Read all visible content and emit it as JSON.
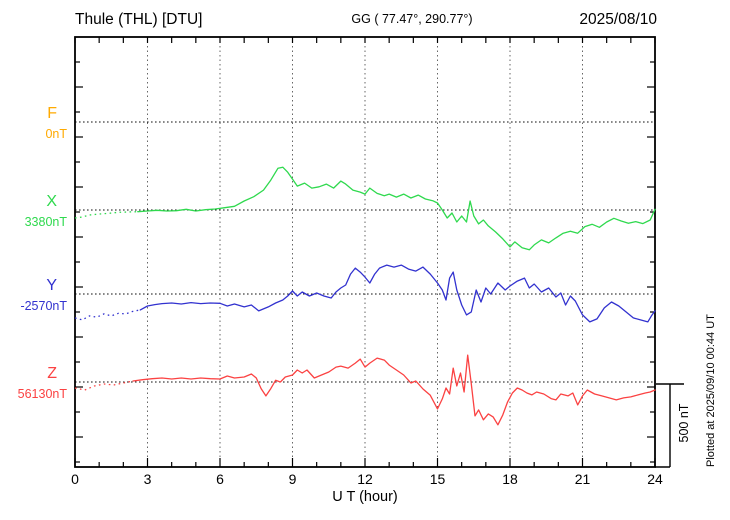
{
  "header": {
    "station_title": "Thule (THL)  [DTU]",
    "geographic_coords": "GG ( 77.47°, 290.77°)",
    "date": "2025/08/10"
  },
  "x_axis": {
    "label": "U T (hour)",
    "major_ticks": [
      0,
      3,
      6,
      9,
      12,
      15,
      18,
      21,
      24
    ],
    "minor_step_hours": 1,
    "range_hours": [
      0,
      24
    ]
  },
  "scale_bar": {
    "label": "500 nT",
    "value_nT": 500
  },
  "plotted_note": "Plotted at 2025/09/10 00:44 UT",
  "colors": {
    "F": "#FFAA00",
    "X": "#2FD94E",
    "Y": "#3232CF",
    "Z": "#FB4242",
    "axis": "#000000",
    "vgrid": "#666666",
    "baseline_dots": "#111111"
  },
  "chart_data": {
    "type": "line",
    "title": "Thule (THL) [DTU] magnetogram 2025/08/10",
    "xlabel": "U T (hour)",
    "x_range_hours": [
      0,
      24
    ],
    "grid": "dotted vertical lines every 3 h; dotted horizontal baseline per component",
    "legend_position": "left margin, one colored letter per component",
    "amplitude_scale": {
      "nT": 500,
      "pixels": 83
    },
    "series": [
      {
        "name": "F",
        "color_key": "F",
        "baseline_label": "0nT",
        "baseline_nT": 0,
        "note": "no trace plotted (no data)",
        "dotted_until_hour": 0,
        "points": []
      },
      {
        "name": "X",
        "color_key": "X",
        "baseline_label": "3380nT",
        "baseline_nT": 3380,
        "dotted_until_hour": 2.6,
        "points": [
          [
            0,
            -48
          ],
          [
            0.3,
            -42
          ],
          [
            0.6,
            -30
          ],
          [
            1,
            -24
          ],
          [
            1.4,
            -20
          ],
          [
            1.8,
            -14
          ],
          [
            2.2,
            -12
          ],
          [
            2.6,
            -10
          ],
          [
            3,
            -6
          ],
          [
            3.4,
            -2
          ],
          [
            3.8,
            -6
          ],
          [
            4.2,
            -4
          ],
          [
            4.6,
            4
          ],
          [
            5,
            -6
          ],
          [
            5.4,
            2
          ],
          [
            5.8,
            6
          ],
          [
            6.2,
            14
          ],
          [
            6.6,
            22
          ],
          [
            7,
            54
          ],
          [
            7.4,
            80
          ],
          [
            7.8,
            120
          ],
          [
            8.1,
            180
          ],
          [
            8.4,
            252
          ],
          [
            8.6,
            258
          ],
          [
            8.8,
            228
          ],
          [
            9,
            186
          ],
          [
            9.2,
            144
          ],
          [
            9.5,
            162
          ],
          [
            9.8,
            132
          ],
          [
            10.1,
            140
          ],
          [
            10.4,
            156
          ],
          [
            10.7,
            132
          ],
          [
            11,
            174
          ],
          [
            11.2,
            156
          ],
          [
            11.5,
            120
          ],
          [
            11.8,
            108
          ],
          [
            12,
            96
          ],
          [
            12.2,
            132
          ],
          [
            12.5,
            100
          ],
          [
            12.8,
            86
          ],
          [
            13,
            96
          ],
          [
            13.3,
            78
          ],
          [
            13.6,
            96
          ],
          [
            13.9,
            72
          ],
          [
            14.2,
            90
          ],
          [
            14.5,
            66
          ],
          [
            14.8,
            56
          ],
          [
            15,
            42
          ],
          [
            15.2,
            0
          ],
          [
            15.4,
            -48
          ],
          [
            15.6,
            -18
          ],
          [
            15.8,
            -72
          ],
          [
            16,
            -36
          ],
          [
            16.2,
            -72
          ],
          [
            16.35,
            54
          ],
          [
            16.5,
            -36
          ],
          [
            16.7,
            -84
          ],
          [
            16.9,
            -60
          ],
          [
            17.1,
            -96
          ],
          [
            17.4,
            -132
          ],
          [
            17.7,
            -174
          ],
          [
            18,
            -222
          ],
          [
            18.2,
            -192
          ],
          [
            18.5,
            -228
          ],
          [
            18.8,
            -240
          ],
          [
            19,
            -210
          ],
          [
            19.3,
            -180
          ],
          [
            19.6,
            -198
          ],
          [
            19.9,
            -168
          ],
          [
            20.2,
            -140
          ],
          [
            20.5,
            -128
          ],
          [
            20.8,
            -140
          ],
          [
            21.1,
            -100
          ],
          [
            21.4,
            -86
          ],
          [
            21.7,
            -104
          ],
          [
            22,
            -72
          ],
          [
            22.3,
            -50
          ],
          [
            22.6,
            -66
          ],
          [
            22.9,
            -80
          ],
          [
            23.2,
            -70
          ],
          [
            23.5,
            -82
          ],
          [
            23.8,
            -60
          ],
          [
            24,
            4
          ]
        ]
      },
      {
        "name": "Y",
        "color_key": "Y",
        "baseline_label": "-2570nT",
        "baseline_nT": -2570,
        "dotted_until_hour": 2.7,
        "points": [
          [
            0,
            -144
          ],
          [
            0.3,
            -156
          ],
          [
            0.6,
            -132
          ],
          [
            0.9,
            -140
          ],
          [
            1.2,
            -120
          ],
          [
            1.5,
            -132
          ],
          [
            1.8,
            -116
          ],
          [
            2.1,
            -120
          ],
          [
            2.4,
            -104
          ],
          [
            2.7,
            -96
          ],
          [
            3,
            -72
          ],
          [
            3.3,
            -64
          ],
          [
            3.6,
            -58
          ],
          [
            4,
            -54
          ],
          [
            4.4,
            -60
          ],
          [
            4.8,
            -52
          ],
          [
            5.2,
            -58
          ],
          [
            5.6,
            -54
          ],
          [
            6,
            -56
          ],
          [
            6.3,
            -72
          ],
          [
            6.6,
            -60
          ],
          [
            7,
            -78
          ],
          [
            7.3,
            -66
          ],
          [
            7.6,
            -102
          ],
          [
            8,
            -78
          ],
          [
            8.3,
            -54
          ],
          [
            8.6,
            -36
          ],
          [
            8.8,
            -12
          ],
          [
            9,
            18
          ],
          [
            9.2,
            -12
          ],
          [
            9.4,
            12
          ],
          [
            9.7,
            -12
          ],
          [
            10,
            6
          ],
          [
            10.3,
            -12
          ],
          [
            10.6,
            -24
          ],
          [
            10.8,
            12
          ],
          [
            11,
            36
          ],
          [
            11.2,
            54
          ],
          [
            11.4,
            120
          ],
          [
            11.6,
            156
          ],
          [
            11.8,
            132
          ],
          [
            12,
            102
          ],
          [
            12.2,
            66
          ],
          [
            12.4,
            120
          ],
          [
            12.6,
            156
          ],
          [
            12.9,
            174
          ],
          [
            13.2,
            162
          ],
          [
            13.5,
            174
          ],
          [
            13.8,
            150
          ],
          [
            14.1,
            138
          ],
          [
            14.4,
            162
          ],
          [
            14.7,
            120
          ],
          [
            15,
            66
          ],
          [
            15.2,
            24
          ],
          [
            15.35,
            -36
          ],
          [
            15.5,
            96
          ],
          [
            15.65,
            132
          ],
          [
            15.8,
            24
          ],
          [
            16,
            -66
          ],
          [
            16.2,
            -126
          ],
          [
            16.4,
            -108
          ],
          [
            16.6,
            24
          ],
          [
            16.8,
            -48
          ],
          [
            17,
            36
          ],
          [
            17.2,
            0
          ],
          [
            17.5,
            66
          ],
          [
            17.8,
            24
          ],
          [
            18,
            48
          ],
          [
            18.3,
            78
          ],
          [
            18.6,
            96
          ],
          [
            18.8,
            36
          ],
          [
            19,
            60
          ],
          [
            19.3,
            12
          ],
          [
            19.6,
            36
          ],
          [
            19.9,
            -18
          ],
          [
            20.1,
            6
          ],
          [
            20.3,
            -66
          ],
          [
            20.5,
            -12
          ],
          [
            20.7,
            -42
          ],
          [
            21,
            -126
          ],
          [
            21.3,
            -168
          ],
          [
            21.6,
            -150
          ],
          [
            21.9,
            -84
          ],
          [
            22.2,
            -48
          ],
          [
            22.5,
            -72
          ],
          [
            22.8,
            -108
          ],
          [
            23.1,
            -144
          ],
          [
            23.4,
            -156
          ],
          [
            23.7,
            -168
          ],
          [
            23.85,
            -132
          ],
          [
            24,
            -102
          ]
        ]
      },
      {
        "name": "Z",
        "color_key": "Z",
        "baseline_label": "56130nT",
        "baseline_nT": 56130,
        "dotted_until_hour": 2.4,
        "points": [
          [
            0,
            -36
          ],
          [
            0.4,
            -48
          ],
          [
            0.8,
            -24
          ],
          [
            1.2,
            -12
          ],
          [
            1.6,
            -18
          ],
          [
            2,
            -6
          ],
          [
            2.4,
            6
          ],
          [
            2.8,
            14
          ],
          [
            3.2,
            20
          ],
          [
            3.6,
            24
          ],
          [
            4,
            18
          ],
          [
            4.4,
            24
          ],
          [
            4.8,
            18
          ],
          [
            5.2,
            24
          ],
          [
            5.6,
            20
          ],
          [
            6,
            18
          ],
          [
            6.3,
            36
          ],
          [
            6.6,
            24
          ],
          [
            7,
            30
          ],
          [
            7.3,
            48
          ],
          [
            7.5,
            24
          ],
          [
            7.7,
            -40
          ],
          [
            7.9,
            -84
          ],
          [
            8.1,
            -40
          ],
          [
            8.3,
            10
          ],
          [
            8.5,
            0
          ],
          [
            8.7,
            30
          ],
          [
            9,
            42
          ],
          [
            9.2,
            72
          ],
          [
            9.4,
            54
          ],
          [
            9.6,
            72
          ],
          [
            9.9,
            24
          ],
          [
            10.2,
            42
          ],
          [
            10.5,
            60
          ],
          [
            10.8,
            90
          ],
          [
            11,
            96
          ],
          [
            11.3,
            84
          ],
          [
            11.6,
            114
          ],
          [
            11.8,
            138
          ],
          [
            12,
            90
          ],
          [
            12.2,
            114
          ],
          [
            12.5,
            144
          ],
          [
            12.8,
            132
          ],
          [
            13,
            102
          ],
          [
            13.3,
            72
          ],
          [
            13.6,
            42
          ],
          [
            13.9,
            -6
          ],
          [
            14.1,
            6
          ],
          [
            14.4,
            -42
          ],
          [
            14.7,
            -80
          ],
          [
            15,
            -162
          ],
          [
            15.2,
            -102
          ],
          [
            15.35,
            -36
          ],
          [
            15.5,
            -72
          ],
          [
            15.65,
            84
          ],
          [
            15.8,
            -24
          ],
          [
            15.95,
            54
          ],
          [
            16.1,
            -60
          ],
          [
            16.25,
            162
          ],
          [
            16.4,
            -12
          ],
          [
            16.55,
            -204
          ],
          [
            16.7,
            -168
          ],
          [
            16.9,
            -228
          ],
          [
            17.1,
            -192
          ],
          [
            17.3,
            -210
          ],
          [
            17.5,
            -258
          ],
          [
            17.7,
            -198
          ],
          [
            17.9,
            -120
          ],
          [
            18.1,
            -66
          ],
          [
            18.3,
            -36
          ],
          [
            18.5,
            -48
          ],
          [
            18.7,
            -66
          ],
          [
            18.9,
            -78
          ],
          [
            19.1,
            -60
          ],
          [
            19.4,
            -72
          ],
          [
            19.7,
            -100
          ],
          [
            19.9,
            -108
          ],
          [
            20.1,
            -72
          ],
          [
            20.4,
            -84
          ],
          [
            20.6,
            -66
          ],
          [
            20.8,
            -138
          ],
          [
            21,
            -84
          ],
          [
            21.2,
            -48
          ],
          [
            21.5,
            -72
          ],
          [
            21.8,
            -84
          ],
          [
            22.1,
            -96
          ],
          [
            22.4,
            -108
          ],
          [
            22.7,
            -96
          ],
          [
            23,
            -90
          ],
          [
            23.3,
            -78
          ],
          [
            23.6,
            -66
          ],
          [
            23.8,
            -60
          ],
          [
            24,
            -48
          ]
        ]
      }
    ]
  }
}
